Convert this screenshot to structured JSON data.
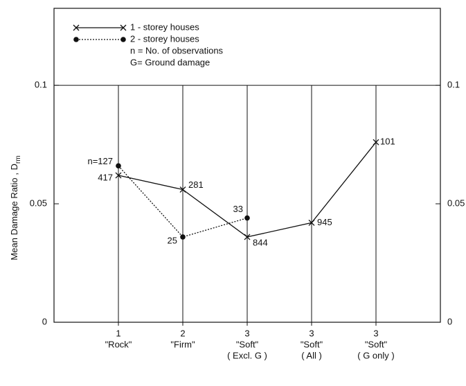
{
  "chart_data": {
    "type": "line",
    "ylabel": "Mean Damage Ratio , D",
    "ylabel_subscript": "rm",
    "categories": [
      [
        "1",
        "\"Rock\""
      ],
      [
        "2",
        "\"Firm\""
      ],
      [
        "3",
        "\"Soft\"",
        "( Excl. G )"
      ],
      [
        "3",
        "\"Soft\"",
        "( All )"
      ],
      [
        "3",
        "\"Soft\"",
        "( G only )"
      ]
    ],
    "series": [
      {
        "name": "1 - storey houses",
        "color": "#111111",
        "marker": "x",
        "dash": "solid",
        "values": [
          0.062,
          0.056,
          0.036,
          0.042,
          0.076
        ],
        "point_labels": [
          "417",
          "281",
          "844",
          "945",
          "101"
        ]
      },
      {
        "name": "2 - storey houses",
        "color": "#111111",
        "marker": "dot",
        "dash": "dotted",
        "values": [
          0.066,
          0.036,
          0.044,
          null,
          null
        ],
        "point_labels": [
          "n=127",
          "25",
          "33",
          null,
          null
        ]
      }
    ],
    "legend_notes": [
      "n = No. of observations",
      "G= Ground damage"
    ],
    "ylim": [
      0,
      0.1325
    ],
    "yticks": [
      0,
      0.05,
      0.1
    ]
  }
}
